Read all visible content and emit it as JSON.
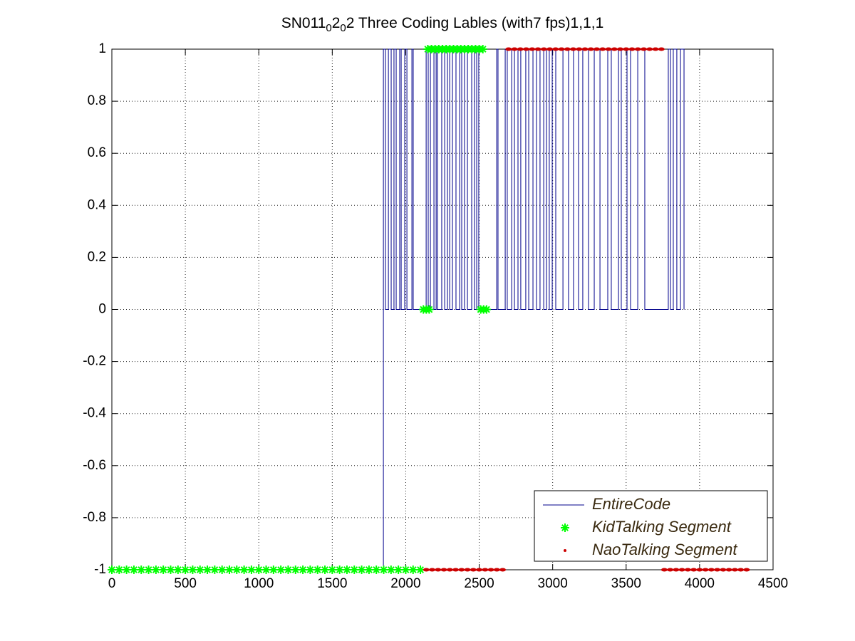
{
  "chart_data": {
    "type": "line",
    "title": [
      "SN011",
      "0",
      "2",
      "0",
      "2 Three Coding Lables (with7 fps)1,1,1"
    ],
    "xlim": [
      0,
      4500
    ],
    "xticks": [
      0,
      500,
      1000,
      1500,
      2000,
      2500,
      3000,
      3500,
      4000,
      4500
    ],
    "ylim": [
      -1,
      1
    ],
    "yticks": [
      -1,
      -0.8,
      -0.6,
      -0.4,
      -0.2,
      0,
      0.2,
      0.4,
      0.6,
      0.8,
      1
    ],
    "grid": true,
    "legend": "lower right",
    "series": [
      {
        "name": "EntireCode",
        "color": "#00008b",
        "marker": "none",
        "x": [
          0,
          1848,
          1848,
          1848,
          1862,
          1862,
          1882,
          1882,
          1901,
          1901,
          1920,
          1920,
          1935,
          1935,
          1959,
          1959,
          1969,
          1969,
          1993,
          1993,
          2008,
          2008,
          2042,
          2042,
          2051,
          2051,
          2139,
          2139,
          2153,
          2153,
          2168,
          2168,
          2192,
          2192,
          2207,
          2207,
          2216,
          2216,
          2245,
          2245,
          2265,
          2265,
          2284,
          2284,
          2299,
          2299,
          2318,
          2318,
          2342,
          2342,
          2367,
          2367,
          2381,
          2381,
          2400,
          2400,
          2420,
          2420,
          2449,
          2449,
          2468,
          2468,
          2483,
          2483,
          2497,
          2497,
          2619,
          2619,
          2628,
          2628,
          2677,
          2677,
          2691,
          2691,
          2721,
          2721,
          2740,
          2740,
          2764,
          2764,
          2783,
          2783,
          2817,
          2817,
          2837,
          2837,
          2866,
          2866,
          2890,
          2890,
          2914,
          2914,
          2939,
          2939,
          2958,
          2958,
          2977,
          2977,
          2997,
          2997,
          3021,
          3021,
          3070,
          3070,
          3108,
          3108,
          3142,
          3142,
          3176,
          3176,
          3205,
          3205,
          3244,
          3244,
          3283,
          3283,
          3322,
          3322,
          3375,
          3375,
          3399,
          3399,
          3448,
          3448,
          3467,
          3467,
          3506,
          3506,
          3530,
          3530,
          3579,
          3579,
          3627,
          3627,
          3787,
          3787,
          3802,
          3802,
          3821,
          3821,
          3845,
          3845,
          3870,
          3870,
          3894,
          3894
        ],
        "values": [
          -1,
          -1,
          0,
          1,
          1,
          0,
          0,
          1,
          1,
          0,
          0,
          1,
          1,
          0,
          0,
          1,
          1,
          0,
          0,
          1,
          1,
          0,
          0,
          1,
          1,
          0,
          0,
          1,
          1,
          0,
          0,
          1,
          1,
          0,
          0,
          1,
          1,
          0,
          0,
          1,
          1,
          0,
          0,
          1,
          1,
          0,
          0,
          1,
          1,
          0,
          0,
          1,
          1,
          0,
          0,
          1,
          1,
          0,
          0,
          1,
          1,
          0,
          0,
          1,
          1,
          0,
          0,
          1,
          1,
          0,
          0,
          1,
          1,
          0,
          0,
          1,
          1,
          0,
          0,
          1,
          1,
          0,
          0,
          1,
          1,
          0,
          0,
          1,
          1,
          0,
          0,
          1,
          1,
          0,
          0,
          1,
          1,
          0,
          0,
          1,
          1,
          0,
          0,
          1,
          1,
          0,
          0,
          1,
          1,
          0,
          0,
          1,
          1,
          0,
          0,
          1,
          1,
          0,
          0,
          1,
          1,
          0,
          0,
          1,
          1,
          0,
          0,
          1,
          1,
          0,
          0,
          1,
          1,
          0,
          0,
          1,
          1,
          0,
          0,
          1,
          1,
          0,
          0,
          1,
          1,
          0
        ]
      },
      {
        "name": "KidTalking Segment",
        "color": "#00ff00",
        "marker": "star",
        "x": [
          0,
          50,
          100,
          150,
          200,
          250,
          300,
          350,
          400,
          450,
          500,
          550,
          600,
          650,
          700,
          750,
          800,
          850,
          900,
          950,
          1000,
          1050,
          1100,
          1150,
          1200,
          1250,
          1300,
          1350,
          1400,
          1450,
          1500,
          1550,
          1600,
          1650,
          1700,
          1750,
          1800,
          1850,
          1900,
          1950,
          2000,
          2050,
          2100,
          2120,
          2140,
          2160,
          2150,
          2175,
          2200,
          2225,
          2250,
          2275,
          2300,
          2325,
          2350,
          2375,
          2400,
          2425,
          2450,
          2475,
          2500,
          2525,
          2510,
          2530,
          2550
        ],
        "values": [
          -1,
          -1,
          -1,
          -1,
          -1,
          -1,
          -1,
          -1,
          -1,
          -1,
          -1,
          -1,
          -1,
          -1,
          -1,
          -1,
          -1,
          -1,
          -1,
          -1,
          -1,
          -1,
          -1,
          -1,
          -1,
          -1,
          -1,
          -1,
          -1,
          -1,
          -1,
          -1,
          -1,
          -1,
          -1,
          -1,
          -1,
          -1,
          -1,
          -1,
          -1,
          -1,
          -1,
          0,
          0,
          0,
          1,
          1,
          1,
          1,
          1,
          1,
          1,
          1,
          1,
          1,
          1,
          1,
          1,
          1,
          1,
          1,
          0,
          0,
          0
        ]
      },
      {
        "name": "NaoTalking Segment",
        "color": "#cc0000",
        "marker": "dot",
        "x": [
          2140,
          2180,
          2220,
          2260,
          2300,
          2340,
          2380,
          2420,
          2460,
          2500,
          2540,
          2580,
          2620,
          2660,
          2700,
          2740,
          2780,
          2820,
          2860,
          2900,
          2940,
          2980,
          3020,
          3060,
          3100,
          3140,
          3180,
          3220,
          3260,
          3300,
          3340,
          3380,
          3420,
          3460,
          3500,
          3540,
          3580,
          3620,
          3660,
          3700,
          3740,
          3760,
          3800,
          3840,
          3880,
          3920,
          3960,
          4000,
          4040,
          4080,
          4120,
          4160,
          4200,
          4240,
          4280,
          4320
        ],
        "values": [
          -1,
          -1,
          -1,
          -1,
          -1,
          -1,
          -1,
          -1,
          -1,
          -1,
          -1,
          -1,
          -1,
          -1,
          1,
          1,
          1,
          1,
          1,
          1,
          1,
          1,
          1,
          1,
          1,
          1,
          1,
          1,
          1,
          1,
          1,
          1,
          1,
          1,
          1,
          1,
          1,
          1,
          1,
          1,
          1,
          -1,
          -1,
          -1,
          -1,
          -1,
          -1,
          -1,
          -1,
          -1,
          -1,
          -1,
          -1,
          -1,
          -1,
          -1
        ]
      }
    ]
  }
}
